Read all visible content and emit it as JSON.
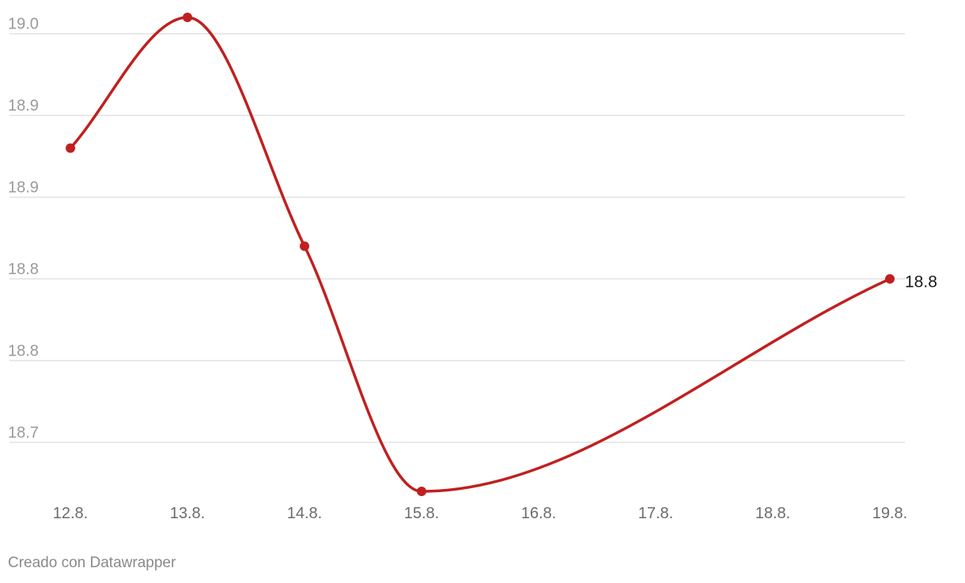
{
  "chart_data": {
    "type": "line",
    "x": [
      "12.8.",
      "13.8.",
      "14.8.",
      "15.8.",
      "16.8.",
      "17.8.",
      "18.8.",
      "19.8."
    ],
    "series": [
      {
        "values": [
          18.93,
          19.01,
          18.87,
          18.72,
          null,
          null,
          null,
          18.85
        ]
      }
    ],
    "y_tick_labels": [
      "19.0",
      "18.9",
      "18.9",
      "18.8",
      "18.8",
      "18.7"
    ],
    "y_tick_values": [
      19.0,
      18.95,
      18.9,
      18.85,
      18.8,
      18.75
    ],
    "ylim": [
      18.72,
      19.01
    ],
    "end_label": "18.8",
    "line_color": "#c0201f",
    "grid": true
  },
  "footer": {
    "credit": "Creado con Datawrapper"
  }
}
